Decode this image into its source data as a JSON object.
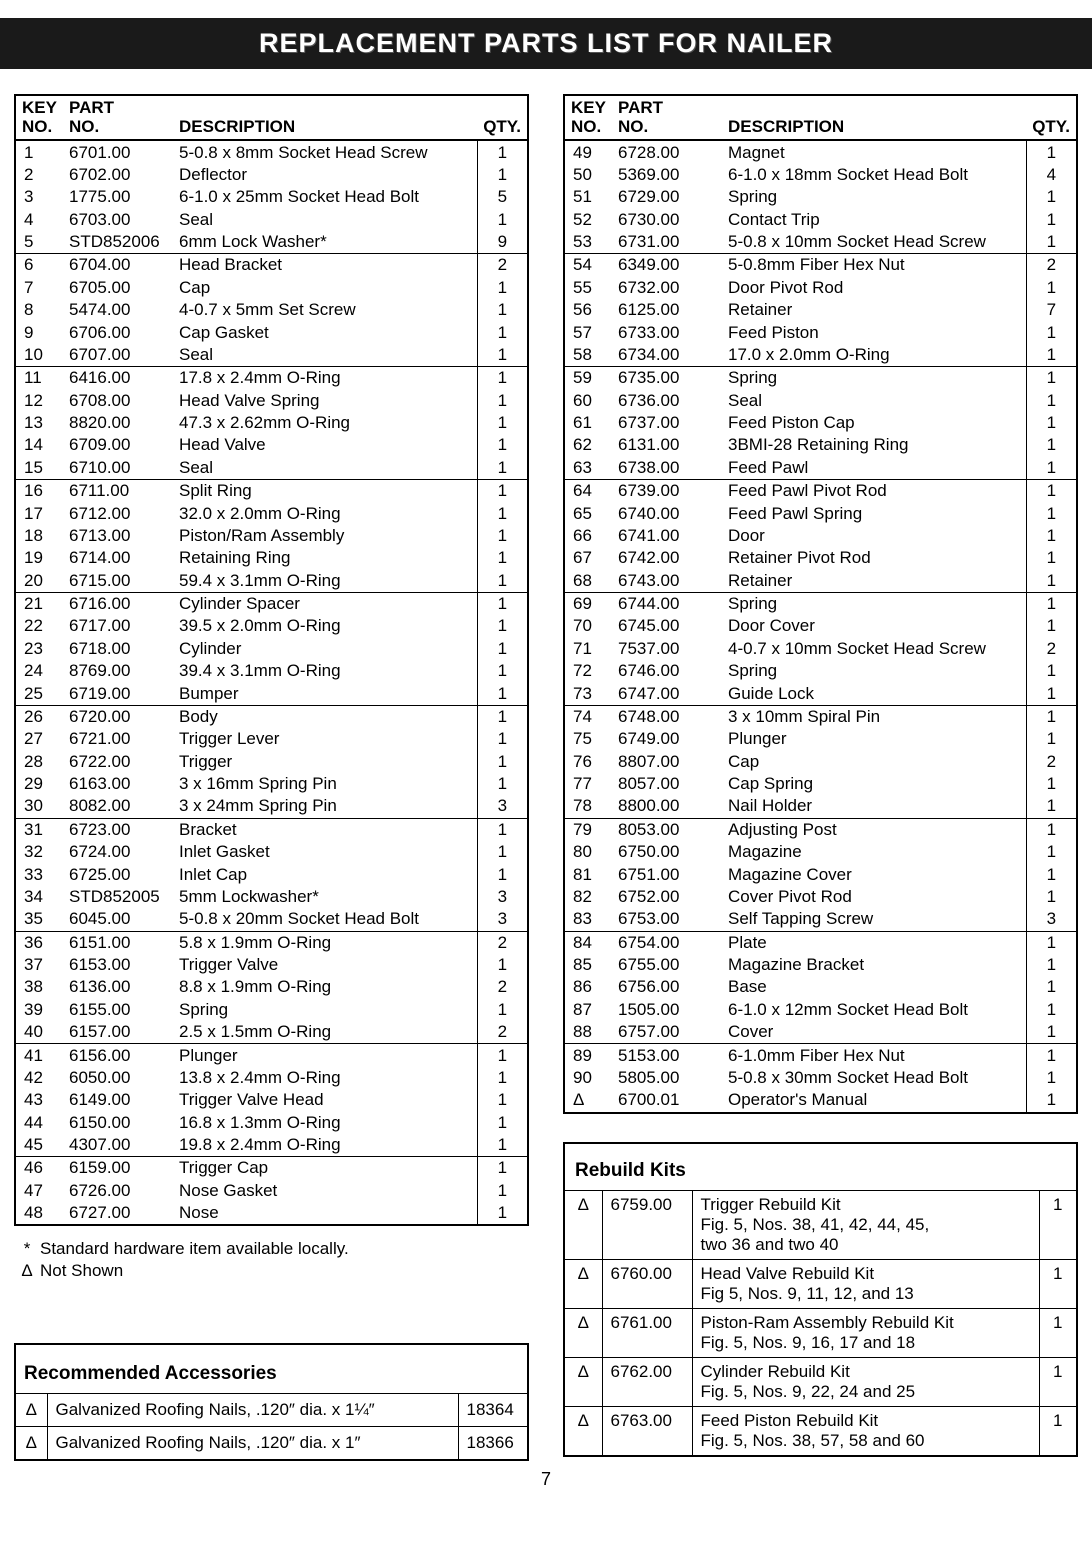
{
  "title": "REPLACEMENT PARTS LIST FOR NAILER",
  "headers": {
    "key1": "KEY",
    "key2": "NO.",
    "part1": "PART",
    "part2": "NO.",
    "desc": "DESCRIPTION",
    "qty": "QTY."
  },
  "leftRows": [
    {
      "k": "1",
      "p": "6701.00",
      "d": "5-0.8 x 8mm Socket Head Screw",
      "q": "1",
      "sep": false
    },
    {
      "k": "2",
      "p": "6702.00",
      "d": "Deflector",
      "q": "1",
      "sep": false
    },
    {
      "k": "3",
      "p": "1775.00",
      "d": "6-1.0 x 25mm Socket Head Bolt",
      "q": "5",
      "sep": false
    },
    {
      "k": "4",
      "p": "6703.00",
      "d": "Seal",
      "q": "1",
      "sep": false
    },
    {
      "k": "5",
      "p": "STD852006",
      "d": "6mm Lock Washer*",
      "q": "9",
      "sep": false
    },
    {
      "k": "6",
      "p": "6704.00",
      "d": "Head Bracket",
      "q": "2",
      "sep": true
    },
    {
      "k": "7",
      "p": "6705.00",
      "d": "Cap",
      "q": "1",
      "sep": false
    },
    {
      "k": "8",
      "p": "5474.00",
      "d": "4-0.7 x 5mm Set Screw",
      "q": "1",
      "sep": false
    },
    {
      "k": "9",
      "p": "6706.00",
      "d": "Cap Gasket",
      "q": "1",
      "sep": false
    },
    {
      "k": "10",
      "p": "6707.00",
      "d": "Seal",
      "q": "1",
      "sep": false
    },
    {
      "k": "11",
      "p": "6416.00",
      "d": "17.8 x 2.4mm O-Ring",
      "q": "1",
      "sep": true
    },
    {
      "k": "12",
      "p": "6708.00",
      "d": "Head Valve Spring",
      "q": "1",
      "sep": false
    },
    {
      "k": "13",
      "p": "8820.00",
      "d": "47.3 x 2.62mm O-Ring",
      "q": "1",
      "sep": false
    },
    {
      "k": "14",
      "p": "6709.00",
      "d": "Head Valve",
      "q": "1",
      "sep": false
    },
    {
      "k": "15",
      "p": "6710.00",
      "d": "Seal",
      "q": "1",
      "sep": false
    },
    {
      "k": "16",
      "p": "6711.00",
      "d": "Split Ring",
      "q": "1",
      "sep": true
    },
    {
      "k": "17",
      "p": "6712.00",
      "d": "32.0 x 2.0mm O-Ring",
      "q": "1",
      "sep": false
    },
    {
      "k": "18",
      "p": "6713.00",
      "d": "Piston/Ram Assembly",
      "q": "1",
      "sep": false
    },
    {
      "k": "19",
      "p": "6714.00",
      "d": "Retaining Ring",
      "q": "1",
      "sep": false
    },
    {
      "k": "20",
      "p": "6715.00",
      "d": "59.4 x 3.1mm O-Ring",
      "q": "1",
      "sep": false
    },
    {
      "k": "21",
      "p": "6716.00",
      "d": "Cylinder Spacer",
      "q": "1",
      "sep": true
    },
    {
      "k": "22",
      "p": "6717.00",
      "d": "39.5 x 2.0mm O-Ring",
      "q": "1",
      "sep": false
    },
    {
      "k": "23",
      "p": "6718.00",
      "d": "Cylinder",
      "q": "1",
      "sep": false
    },
    {
      "k": "24",
      "p": "8769.00",
      "d": "39.4 x 3.1mm O-Ring",
      "q": "1",
      "sep": false
    },
    {
      "k": "25",
      "p": "6719.00",
      "d": "Bumper",
      "q": "1",
      "sep": false
    },
    {
      "k": "26",
      "p": "6720.00",
      "d": "Body",
      "q": "1",
      "sep": true
    },
    {
      "k": "27",
      "p": "6721.00",
      "d": "Trigger Lever",
      "q": "1",
      "sep": false
    },
    {
      "k": "28",
      "p": "6722.00",
      "d": "Trigger",
      "q": "1",
      "sep": false
    },
    {
      "k": "29",
      "p": "6163.00",
      "d": "3 x 16mm Spring Pin",
      "q": "1",
      "sep": false
    },
    {
      "k": "30",
      "p": "8082.00",
      "d": "3 x 24mm Spring Pin",
      "q": "3",
      "sep": false
    },
    {
      "k": "31",
      "p": "6723.00",
      "d": "Bracket",
      "q": "1",
      "sep": true
    },
    {
      "k": "32",
      "p": "6724.00",
      "d": "Inlet Gasket",
      "q": "1",
      "sep": false
    },
    {
      "k": "33",
      "p": "6725.00",
      "d": "Inlet Cap",
      "q": "1",
      "sep": false
    },
    {
      "k": "34",
      "p": "STD852005",
      "d": "5mm Lockwasher*",
      "q": "3",
      "sep": false
    },
    {
      "k": "35",
      "p": "6045.00",
      "d": "5-0.8 x 20mm Socket Head Bolt",
      "q": "3",
      "sep": false
    },
    {
      "k": "36",
      "p": "6151.00",
      "d": "5.8 x 1.9mm O-Ring",
      "q": "2",
      "sep": true
    },
    {
      "k": "37",
      "p": "6153.00",
      "d": "Trigger Valve",
      "q": "1",
      "sep": false
    },
    {
      "k": "38",
      "p": "6136.00",
      "d": "8.8 x 1.9mm O-Ring",
      "q": "2",
      "sep": false
    },
    {
      "k": "39",
      "p": "6155.00",
      "d": "Spring",
      "q": "1",
      "sep": false
    },
    {
      "k": "40",
      "p": "6157.00",
      "d": "2.5 x 1.5mm O-Ring",
      "q": "2",
      "sep": false
    },
    {
      "k": "41",
      "p": "6156.00",
      "d": "Plunger",
      "q": "1",
      "sep": true
    },
    {
      "k": "42",
      "p": "6050.00",
      "d": "13.8 x 2.4mm O-Ring",
      "q": "1",
      "sep": false
    },
    {
      "k": "43",
      "p": "6149.00",
      "d": "Trigger Valve Head",
      "q": "1",
      "sep": false
    },
    {
      "k": "44",
      "p": "6150.00",
      "d": "16.8 x 1.3mm O-Ring",
      "q": "1",
      "sep": false
    },
    {
      "k": "45",
      "p": "4307.00",
      "d": "19.8 x 2.4mm O-Ring",
      "q": "1",
      "sep": false
    },
    {
      "k": "46",
      "p": "6159.00",
      "d": "Trigger Cap",
      "q": "1",
      "sep": true
    },
    {
      "k": "47",
      "p": "6726.00",
      "d": "Nose Gasket",
      "q": "1",
      "sep": false
    },
    {
      "k": "48",
      "p": "6727.00",
      "d": "Nose",
      "q": "1",
      "sep": false
    }
  ],
  "rightRows": [
    {
      "k": "49",
      "p": "6728.00",
      "d": "Magnet",
      "q": "1",
      "sep": false
    },
    {
      "k": "50",
      "p": "5369.00",
      "d": "6-1.0 x 18mm Socket Head Bolt",
      "q": "4",
      "sep": false
    },
    {
      "k": "51",
      "p": "6729.00",
      "d": "Spring",
      "q": "1",
      "sep": false
    },
    {
      "k": "52",
      "p": "6730.00",
      "d": "Contact Trip",
      "q": "1",
      "sep": false
    },
    {
      "k": "53",
      "p": "6731.00",
      "d": "5-0.8 x 10mm Socket Head Screw",
      "q": "1",
      "sep": false
    },
    {
      "k": "54",
      "p": "6349.00",
      "d": "5-0.8mm Fiber Hex Nut",
      "q": "2",
      "sep": true
    },
    {
      "k": "55",
      "p": "6732.00",
      "d": "Door Pivot Rod",
      "q": "1",
      "sep": false
    },
    {
      "k": "56",
      "p": "6125.00",
      "d": "Retainer",
      "q": "7",
      "sep": false
    },
    {
      "k": "57",
      "p": "6733.00",
      "d": "Feed Piston",
      "q": "1",
      "sep": false
    },
    {
      "k": "58",
      "p": "6734.00",
      "d": "17.0 x 2.0mm O-Ring",
      "q": "1",
      "sep": false
    },
    {
      "k": "59",
      "p": "6735.00",
      "d": "Spring",
      "q": "1",
      "sep": true
    },
    {
      "k": "60",
      "p": "6736.00",
      "d": "Seal",
      "q": "1",
      "sep": false
    },
    {
      "k": "61",
      "p": "6737.00",
      "d": "Feed Piston Cap",
      "q": "1",
      "sep": false
    },
    {
      "k": "62",
      "p": "6131.00",
      "d": "3BMI-28 Retaining Ring",
      "q": "1",
      "sep": false
    },
    {
      "k": "63",
      "p": "6738.00",
      "d": "Feed Pawl",
      "q": "1",
      "sep": false
    },
    {
      "k": "64",
      "p": "6739.00",
      "d": "Feed Pawl Pivot Rod",
      "q": "1",
      "sep": true
    },
    {
      "k": "65",
      "p": "6740.00",
      "d": "Feed Pawl Spring",
      "q": "1",
      "sep": false
    },
    {
      "k": "66",
      "p": "6741.00",
      "d": "Door",
      "q": "1",
      "sep": false
    },
    {
      "k": "67",
      "p": "6742.00",
      "d": "Retainer Pivot Rod",
      "q": "1",
      "sep": false
    },
    {
      "k": "68",
      "p": "6743.00",
      "d": "Retainer",
      "q": "1",
      "sep": false
    },
    {
      "k": "69",
      "p": "6744.00",
      "d": "Spring",
      "q": "1",
      "sep": true
    },
    {
      "k": "70",
      "p": "6745.00",
      "d": "Door Cover",
      "q": "1",
      "sep": false
    },
    {
      "k": "71",
      "p": "7537.00",
      "d": "4-0.7 x 10mm Socket Head Screw",
      "q": "2",
      "sep": false
    },
    {
      "k": "72",
      "p": "6746.00",
      "d": "Spring",
      "q": "1",
      "sep": false
    },
    {
      "k": "73",
      "p": "6747.00",
      "d": "Guide Lock",
      "q": "1",
      "sep": false
    },
    {
      "k": "74",
      "p": "6748.00",
      "d": "3 x 10mm Spiral Pin",
      "q": "1",
      "sep": true
    },
    {
      "k": "75",
      "p": "6749.00",
      "d": "Plunger",
      "q": "1",
      "sep": false
    },
    {
      "k": "76",
      "p": "8807.00",
      "d": "Cap",
      "q": "2",
      "sep": false
    },
    {
      "k": "77",
      "p": "8057.00",
      "d": "Cap Spring",
      "q": "1",
      "sep": false
    },
    {
      "k": "78",
      "p": "8800.00",
      "d": "Nail Holder",
      "q": "1",
      "sep": false
    },
    {
      "k": "79",
      "p": "8053.00",
      "d": "Adjusting Post",
      "q": "1",
      "sep": true
    },
    {
      "k": "80",
      "p": "6750.00",
      "d": "Magazine",
      "q": "1",
      "sep": false
    },
    {
      "k": "81",
      "p": "6751.00",
      "d": "Magazine Cover",
      "q": "1",
      "sep": false
    },
    {
      "k": "82",
      "p": "6752.00",
      "d": "Cover Pivot Rod",
      "q": "1",
      "sep": false
    },
    {
      "k": "83",
      "p": "6753.00",
      "d": "Self Tapping Screw",
      "q": "3",
      "sep": false
    },
    {
      "k": "84",
      "p": "6754.00",
      "d": "Plate",
      "q": "1",
      "sep": true
    },
    {
      "k": "85",
      "p": "6755.00",
      "d": "Magazine Bracket",
      "q": "1",
      "sep": false
    },
    {
      "k": "86",
      "p": "6756.00",
      "d": "Base",
      "q": "1",
      "sep": false
    },
    {
      "k": "87",
      "p": "1505.00",
      "d": "6-1.0 x 12mm Socket Head Bolt",
      "q": "1",
      "sep": false
    },
    {
      "k": "88",
      "p": "6757.00",
      "d": "Cover",
      "q": "1",
      "sep": false
    },
    {
      "k": "89",
      "p": "5153.00",
      "d": "6-1.0mm Fiber Hex Nut",
      "q": "1",
      "sep": true
    },
    {
      "k": "90",
      "p": "5805.00",
      "d": "5-0.8 x 30mm Socket Head Bolt",
      "q": "1",
      "sep": false
    },
    {
      "k": "Δ",
      "p": "6700.01",
      "d": "Operator's Manual",
      "q": "1",
      "sep": false
    }
  ],
  "note1sym": "*",
  "note1": "Standard hardware item available locally.",
  "note2sym": "Δ",
  "note2": "Not Shown",
  "accTitle": "Recommended Accessories",
  "accRows": [
    {
      "s": "Δ",
      "d": "Galvanized Roofing Nails, .120″ dia. x 1¼″",
      "n": "18364"
    },
    {
      "s": "Δ",
      "d": "Galvanized Roofing Nails, .120″ dia. x 1″",
      "n": "18366"
    }
  ],
  "kitsTitle": "Rebuild Kits",
  "kitsRows": [
    {
      "s": "Δ",
      "p": "6759.00",
      "d": "Trigger Rebuild Kit\nFig. 5, Nos. 38, 41, 42, 44, 45,\ntwo 36 and two 40",
      "q": "1"
    },
    {
      "s": "Δ",
      "p": "6760.00",
      "d": "Head Valve Rebuild Kit\nFig 5, Nos. 9, 11, 12, and 13",
      "q": "1"
    },
    {
      "s": "Δ",
      "p": "6761.00",
      "d": "Piston-Ram Assembly Rebuild Kit\nFig. 5, Nos. 9, 16, 17 and 18",
      "q": "1"
    },
    {
      "s": "Δ",
      "p": "6762.00",
      "d": "Cylinder Rebuild Kit\nFig. 5, Nos. 9, 22, 24 and 25",
      "q": "1"
    },
    {
      "s": "Δ",
      "p": "6763.00",
      "d": "Feed Piston Rebuild Kit\nFig. 5, Nos. 38, 57, 58 and 60",
      "q": "1"
    }
  ],
  "pageNum": "7"
}
